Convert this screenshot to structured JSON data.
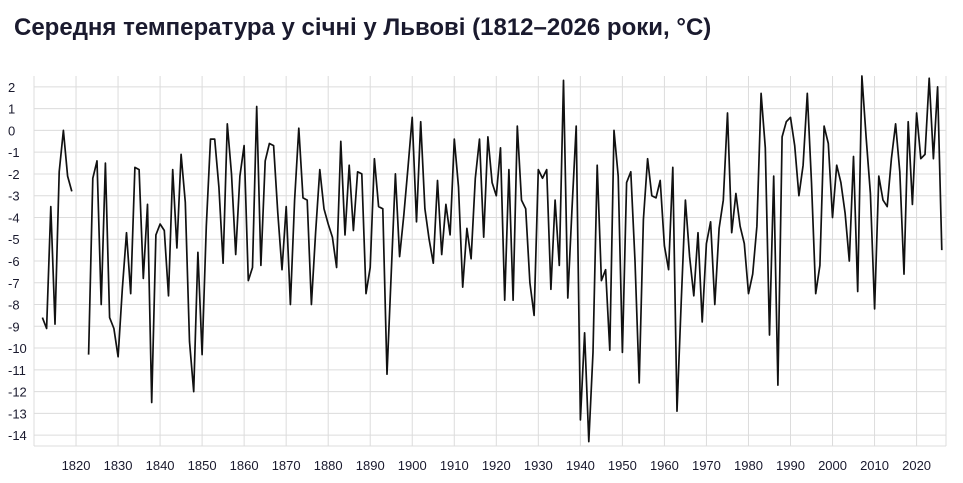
{
  "chart_data": {
    "type": "line",
    "title": "Середня температура у січні у Львові (1812–2026 роки, °C)",
    "xlabel": "",
    "ylabel": "",
    "xlim": [
      1810,
      2027
    ],
    "ylim": [
      -14.5,
      2.5
    ],
    "grid": true,
    "x_ticks": [
      1820,
      1830,
      1840,
      1850,
      1860,
      1870,
      1880,
      1890,
      1900,
      1910,
      1920,
      1930,
      1940,
      1950,
      1960,
      1970,
      1980,
      1990,
      2000,
      2010,
      2020
    ],
    "y_ticks": [
      2,
      1,
      0,
      -1,
      -2,
      -3,
      -4,
      -5,
      -6,
      -7,
      -8,
      -9,
      -10,
      -11,
      -12,
      -13,
      -14
    ],
    "x_tick_labels": [
      "1820",
      "1830",
      "1840",
      "1850",
      "1860",
      "1870",
      "1880",
      "1890",
      "1900",
      "1910",
      "1920",
      "1930",
      "1940",
      "1950",
      "1960",
      "1970",
      "1980",
      "1990",
      "2000",
      "2010",
      "2020"
    ],
    "y_tick_labels": [
      "2",
      "1",
      "0",
      "-1",
      "-2",
      "-3",
      "-4",
      "-5",
      "-6",
      "-7",
      "-8",
      "-9",
      "-10",
      "-11",
      "-12",
      "-13",
      "-14"
    ],
    "segments": [
      {
        "x": [
          1812,
          1813,
          1814,
          1815,
          1816,
          1817,
          1818,
          1819
        ],
        "y": [
          -8.6,
          -9.1,
          -3.5,
          -8.9,
          -1.9,
          0.0,
          -2.1,
          -2.8
        ]
      },
      {
        "x": [
          1823,
          1824,
          1825,
          1826,
          1827,
          1828,
          1829,
          1830,
          1831,
          1832,
          1833,
          1834,
          1835,
          1836,
          1837,
          1838,
          1839,
          1840,
          1841,
          1842,
          1843,
          1844,
          1845,
          1846,
          1847,
          1848,
          1849,
          1850,
          1851,
          1852,
          1853,
          1854,
          1855,
          1856,
          1857,
          1858,
          1859,
          1860,
          1861,
          1862,
          1863,
          1864,
          1865,
          1866,
          1867,
          1868,
          1869,
          1870,
          1871,
          1872,
          1873,
          1874,
          1875,
          1876,
          1877,
          1878,
          1879,
          1880,
          1881,
          1882,
          1883,
          1884,
          1885,
          1886,
          1887,
          1888,
          1889,
          1890,
          1891,
          1892,
          1893,
          1894,
          1895,
          1896,
          1897,
          1898,
          1899,
          1900,
          1901,
          1902,
          1903,
          1904,
          1905,
          1906,
          1907,
          1908,
          1909,
          1910,
          1911,
          1912,
          1913,
          1914,
          1915,
          1916,
          1917,
          1918,
          1919,
          1920,
          1921,
          1922,
          1923,
          1924,
          1925,
          1926,
          1927,
          1928,
          1929,
          1930,
          1931,
          1932,
          1933,
          1934,
          1935,
          1936,
          1937,
          1938,
          1939,
          1940,
          1941,
          1942,
          1943,
          1944,
          1945,
          1946,
          1947,
          1948,
          1949,
          1950,
          1951,
          1952,
          1953,
          1954,
          1955,
          1956,
          1957,
          1958,
          1959,
          1960,
          1961,
          1962,
          1963,
          1964,
          1965,
          1966,
          1967,
          1968,
          1969,
          1970,
          1971,
          1972,
          1973,
          1974,
          1975,
          1976,
          1977,
          1978,
          1979,
          1980,
          1981,
          1982,
          1983,
          1984,
          1985,
          1986,
          1987,
          1988,
          1989,
          1990,
          1991,
          1992,
          1993,
          1994,
          1995,
          1996,
          1997,
          1998,
          1999,
          2000,
          2001,
          2002,
          2003,
          2004,
          2005,
          2006,
          2007,
          2008,
          2009,
          2010,
          2011,
          2012,
          2013,
          2014,
          2015,
          2016,
          2017,
          2018,
          2019,
          2020,
          2021,
          2022,
          2023,
          2024,
          2025,
          2026
        ],
        "y": [
          -10.3,
          -2.2,
          -1.4,
          -8.0,
          -1.5,
          -8.6,
          -9.1,
          -10.4,
          -7.3,
          -4.7,
          -7.5,
          -1.7,
          -1.8,
          -6.8,
          -3.4,
          -12.5,
          -4.8,
          -4.3,
          -4.6,
          -7.6,
          -1.8,
          -5.4,
          -1.1,
          -3.3,
          -9.7,
          -12.0,
          -5.6,
          -10.3,
          -4.4,
          -0.4,
          -0.4,
          -2.6,
          -6.1,
          0.3,
          -2.0,
          -5.7,
          -2.1,
          -0.7,
          -6.9,
          -6.3,
          1.1,
          -6.2,
          -1.4,
          -0.6,
          -0.7,
          -3.8,
          -6.4,
          -3.5,
          -8.0,
          -3.2,
          0.1,
          -3.1,
          -3.2,
          -8.0,
          -4.7,
          -1.8,
          -3.6,
          -4.3,
          -4.9,
          -6.3,
          -0.5,
          -4.8,
          -1.6,
          -4.6,
          -1.9,
          -2.0,
          -7.5,
          -6.3,
          -1.3,
          -3.5,
          -3.6,
          -11.2,
          -6.6,
          -2.0,
          -5.8,
          -3.9,
          -1.7,
          0.6,
          -4.2,
          0.4,
          -3.6,
          -5.0,
          -6.1,
          -2.3,
          -5.7,
          -3.4,
          -4.8,
          -0.4,
          -2.6,
          -7.2,
          -4.5,
          -5.9,
          -2.2,
          -0.4,
          -4.9,
          -0.3,
          -2.4,
          -3.0,
          -0.8,
          -7.8,
          -1.8,
          -7.8,
          0.2,
          -3.2,
          -3.6,
          -7.0,
          -8.5,
          -1.8,
          -2.2,
          -1.8,
          -7.3,
          -3.2,
          -6.2,
          2.3,
          -7.7,
          -3.6,
          0.2,
          -13.3,
          -9.3,
          -14.3,
          -10.2,
          -1.6,
          -6.9,
          -6.4,
          -10.1,
          0.0,
          -2.1,
          -10.2,
          -2.4,
          -1.9,
          -6.0,
          -11.6,
          -4.1,
          -1.3,
          -3.0,
          -3.1,
          -2.3,
          -5.3,
          -6.4,
          -1.7,
          -12.9,
          -7.9,
          -3.2,
          -5.8,
          -7.6,
          -4.7,
          -8.8,
          -5.2,
          -4.2,
          -8.0,
          -4.5,
          -3.2,
          0.8,
          -4.7,
          -2.9,
          -4.4,
          -5.2,
          -7.5,
          -6.6,
          -4.4,
          1.7,
          -0.8,
          -9.4,
          -2.1,
          -11.7,
          -0.3,
          0.4,
          0.6,
          -0.7,
          -3.0,
          -1.6,
          1.7,
          -2.4,
          -7.5,
          -6.2,
          0.2,
          -0.6,
          -4.0,
          -1.6,
          -2.4,
          -3.8,
          -6.0,
          -1.2,
          -7.4,
          2.5,
          -0.3,
          -2.9,
          -8.2,
          -2.1,
          -3.2,
          -3.5,
          -1.3,
          0.3,
          -1.9,
          -6.6,
          0.4,
          -3.4,
          0.8,
          -1.3,
          -1.1,
          2.4,
          -1.3,
          2.0,
          -5.5
        ]
      }
    ]
  }
}
